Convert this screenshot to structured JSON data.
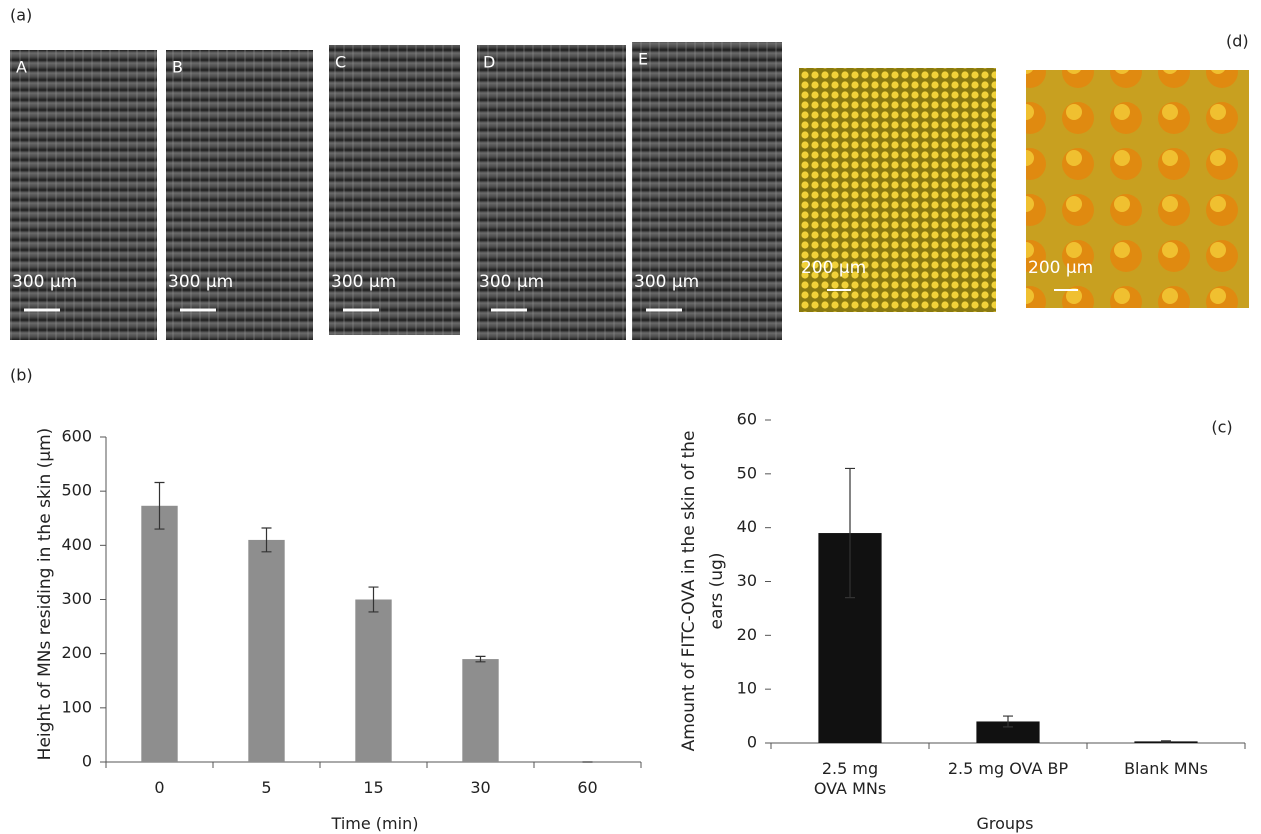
{
  "panel_a": {
    "label": "(a)",
    "images": [
      {
        "letter": "A",
        "scale": "300 µm"
      },
      {
        "letter": "B",
        "scale": "300 µm"
      },
      {
        "letter": "C",
        "scale": "300 µm"
      },
      {
        "letter": "D",
        "scale": "300 µm"
      },
      {
        "letter": "E",
        "scale": "300 µm"
      }
    ]
  },
  "panel_d": {
    "label": "(d)",
    "images": [
      {
        "scale": "200 µm"
      },
      {
        "scale": "200 µm"
      }
    ]
  },
  "chart_data": [
    {
      "type": "bar",
      "panel_label": "(b)",
      "x_label": "Time (min)",
      "y_label": "Height of MNs residing in the skin (µm)",
      "categories": [
        "0",
        "5",
        "15",
        "30",
        "60"
      ],
      "values": [
        473,
        410,
        300,
        190,
        0
      ],
      "errors": [
        43,
        22,
        23,
        5,
        0
      ],
      "color": "#8e8e8e",
      "ylim": [
        0,
        600
      ],
      "yticks": [
        0,
        100,
        200,
        300,
        400,
        500,
        600
      ]
    },
    {
      "type": "bar",
      "panel_label": "(c)",
      "x_label": "Groups",
      "y_label": "Amount of FITC-OVA in the skin of the ears (ug)",
      "categories": [
        "2.5 mg\nOVA MNs",
        "2.5 mg OVA BP",
        "Blank MNs"
      ],
      "values": [
        39,
        4,
        0.3
      ],
      "errors": [
        12,
        1,
        0.1
      ],
      "color": "#111111",
      "ylim": [
        0,
        60
      ],
      "yticks": [
        0,
        10,
        20,
        30,
        40,
        50,
        60
      ]
    }
  ]
}
